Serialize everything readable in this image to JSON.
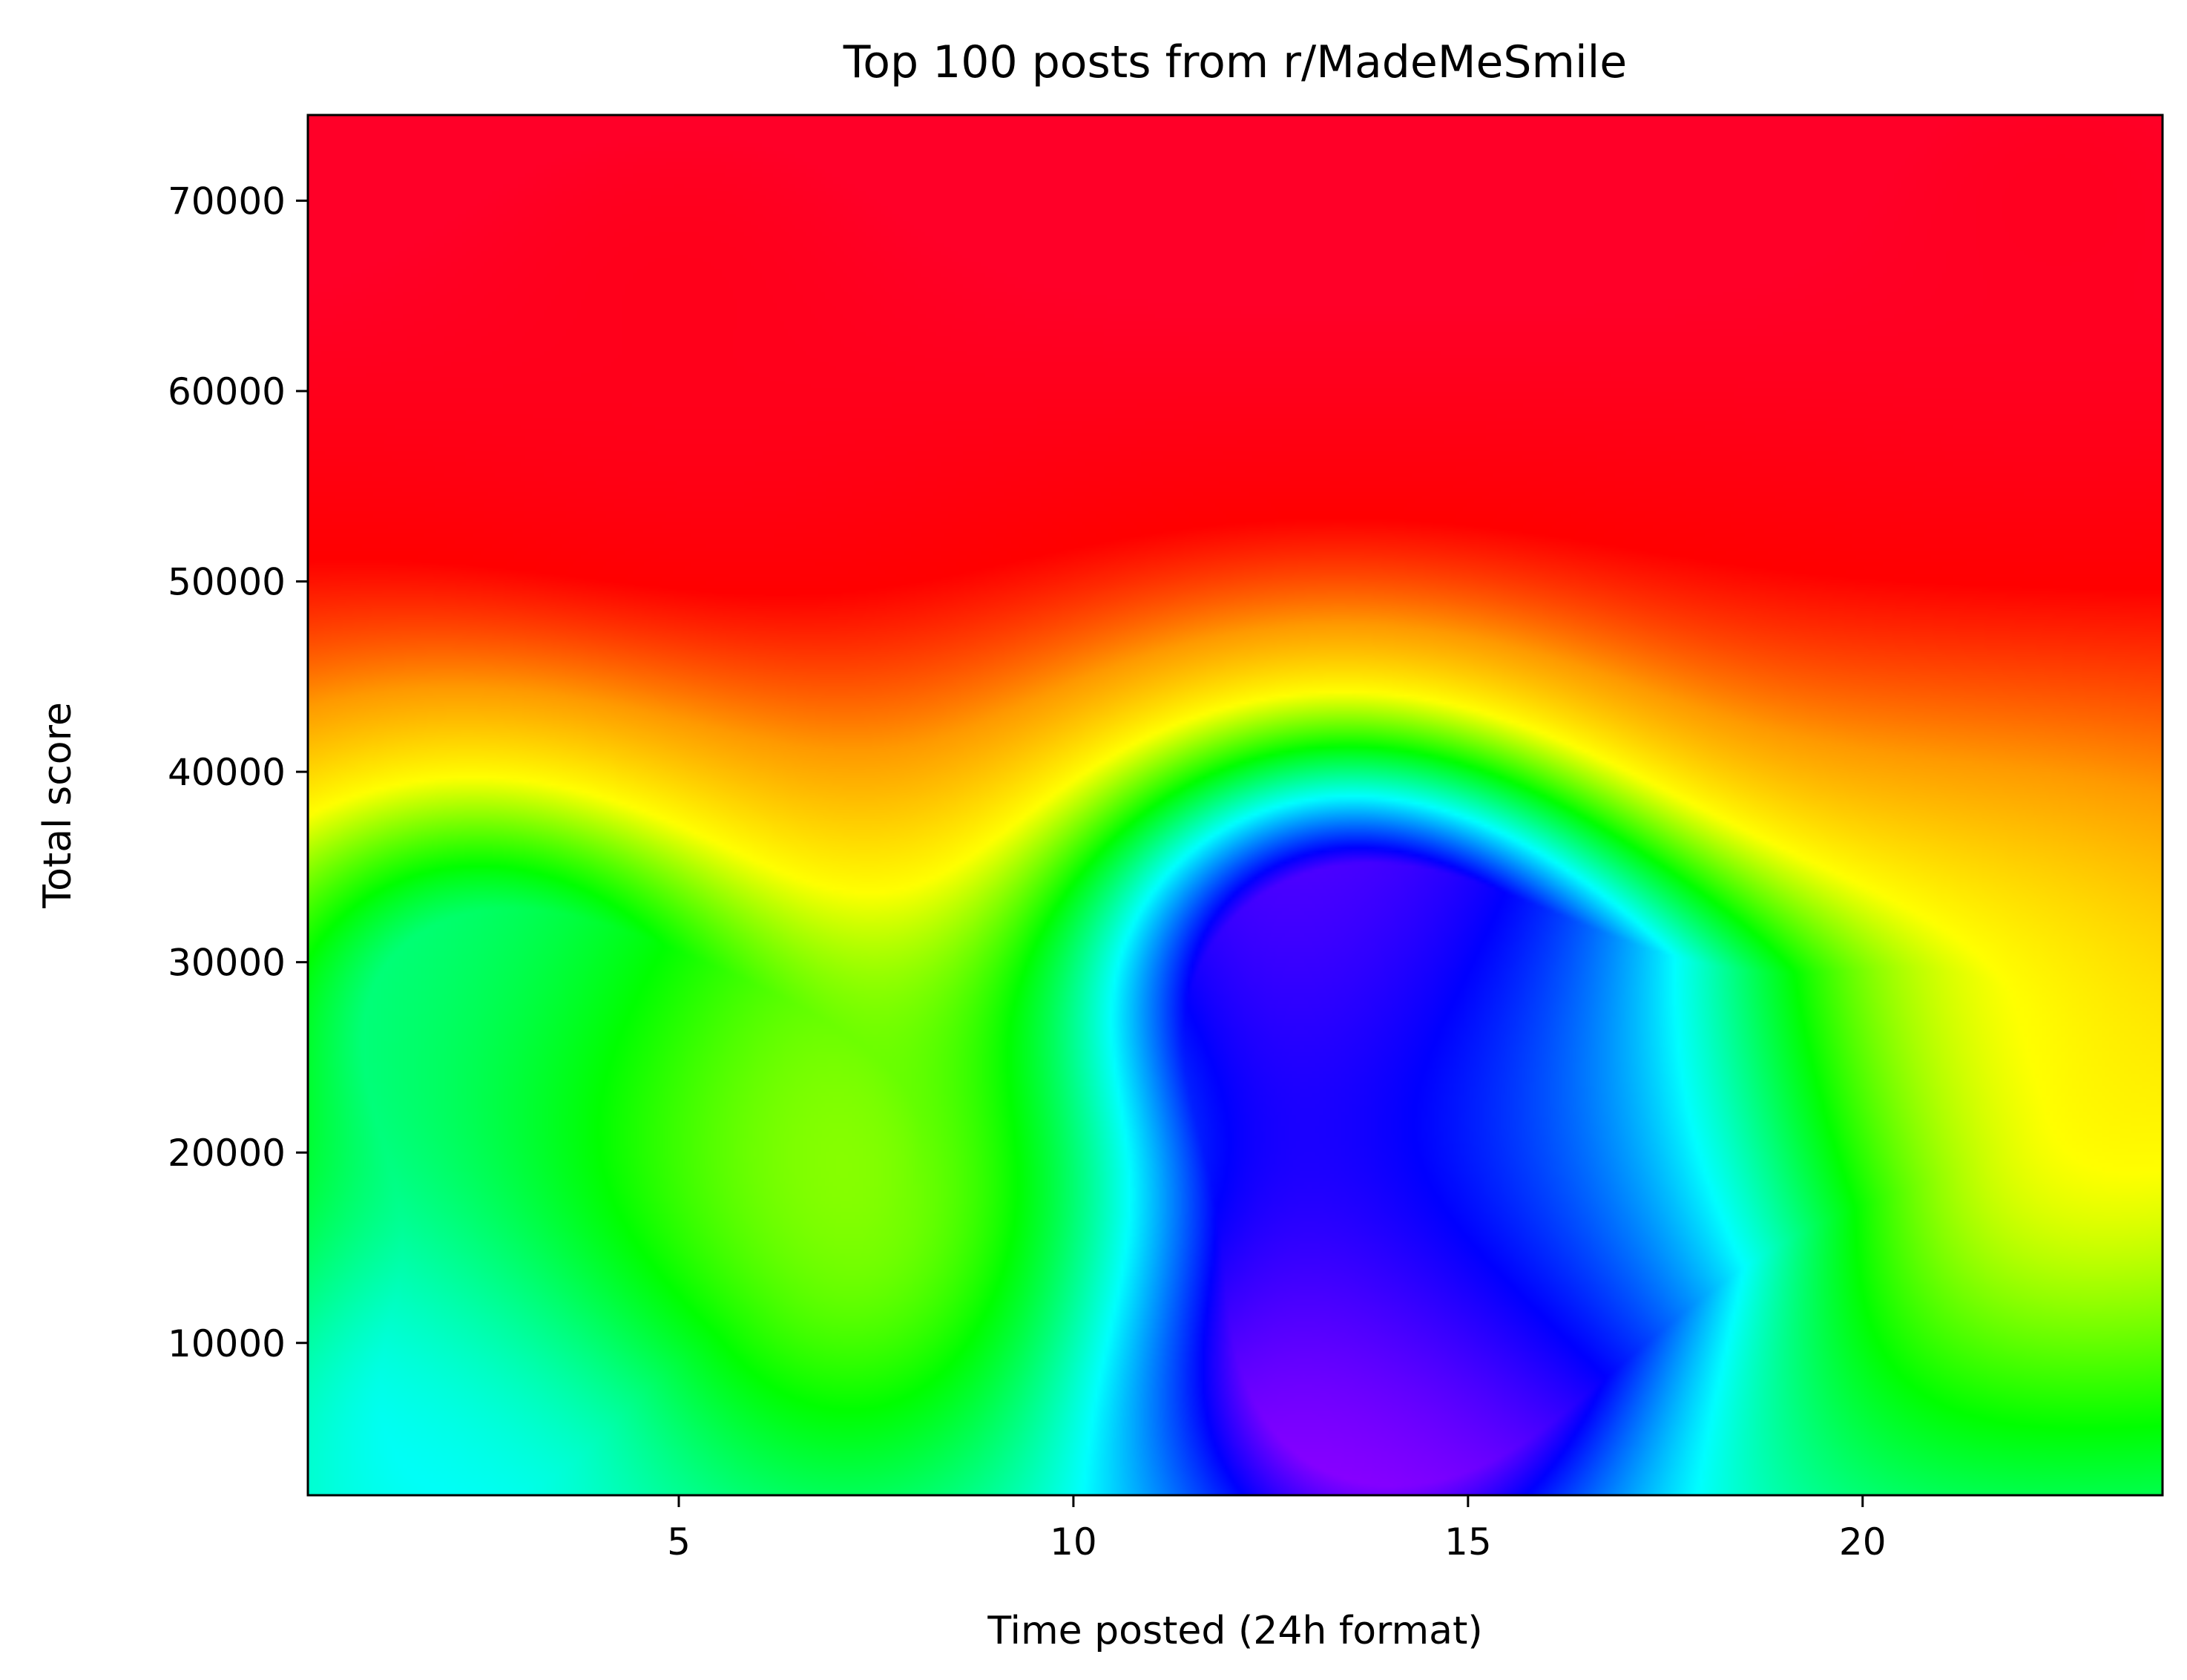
{
  "chart_data": {
    "type": "heatmap",
    "title": "Top 100 posts from r/MadeMeSmile",
    "xlabel": "Time posted (24h format)",
    "ylabel": "Total score",
    "xlim": [
      0.3,
      23.8
    ],
    "ylim": [
      2000,
      74500
    ],
    "xticks": [
      5,
      10,
      15,
      20
    ],
    "yticks": [
      10000,
      20000,
      30000,
      40000,
      50000,
      60000,
      70000
    ],
    "colormap": "gist_rainbow",
    "colormap_stops": [
      "#ff0028",
      "#ff0000",
      "#ff9a00",
      "#ffff00",
      "#00ff00",
      "#00ffff",
      "#0000ff",
      "#ff00ff"
    ],
    "grid": false,
    "surface_features": [
      {
        "kind": "low",
        "x": 2.3,
        "y": 28000,
        "level": 0.65
      },
      {
        "kind": "low",
        "x": 2.3,
        "y": 5000,
        "level": 0.72
      },
      {
        "kind": "low",
        "x": 13.3,
        "y": 30000,
        "level": 0.92
      },
      {
        "kind": "low",
        "x": 13.8,
        "y": 7000,
        "level": 0.95
      },
      {
        "kind": "low",
        "x": 16.5,
        "y": 20000,
        "level": 0.78
      },
      {
        "kind": "high",
        "x": 6.5,
        "y": 20000,
        "level": 0.45
      },
      {
        "kind": "high",
        "x": 21.5,
        "y": 25000,
        "level": 0.4
      },
      {
        "kind": "high",
        "x": 5.0,
        "y": 65000,
        "level": 0.05
      },
      {
        "kind": "high",
        "x": 22.5,
        "y": 70000,
        "level": 0.03
      }
    ]
  }
}
